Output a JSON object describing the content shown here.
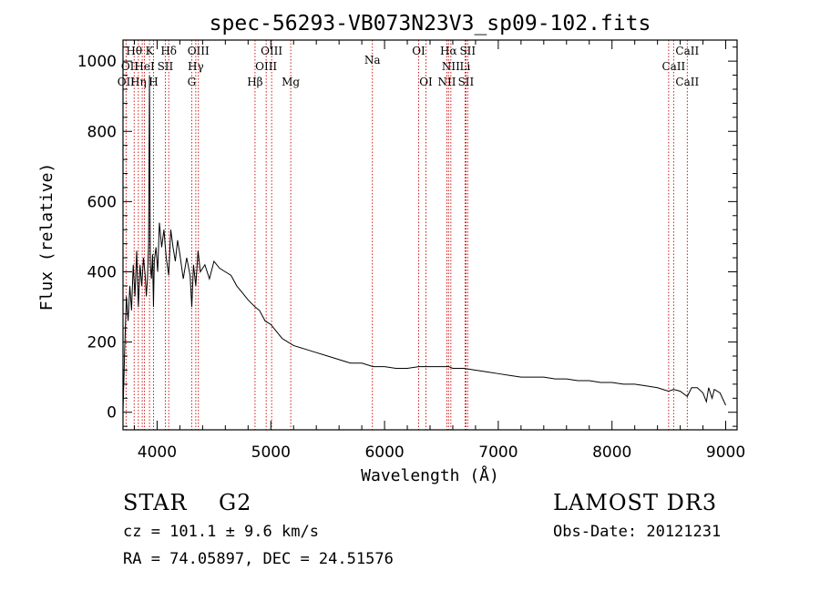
{
  "chart_data": {
    "type": "line",
    "title": "spec-56293-VB073N23V3_sp09-102.fits",
    "xlabel": "Wavelength (Å)",
    "ylabel": "Flux (relative)",
    "xlim": [
      3700,
      9100
    ],
    "ylim": [
      -50,
      1060
    ],
    "xticks": [
      4000,
      5000,
      6000,
      7000,
      8000,
      9000
    ],
    "yticks": [
      0,
      200,
      400,
      600,
      800,
      1000
    ],
    "series": [
      {
        "name": "spectrum",
        "x": [
          3700,
          3715,
          3730,
          3745,
          3760,
          3775,
          3790,
          3805,
          3820,
          3835,
          3850,
          3865,
          3880,
          3895,
          3905,
          3915,
          3925,
          3933,
          3940,
          3950,
          3960,
          3968,
          3975,
          3990,
          4005,
          4020,
          4040,
          4060,
          4080,
          4102,
          4120,
          4140,
          4160,
          4180,
          4200,
          4230,
          4260,
          4290,
          4305,
          4320,
          4340,
          4360,
          4380,
          4420,
          4460,
          4500,
          4550,
          4600,
          4650,
          4700,
          4750,
          4800,
          4861,
          4900,
          4950,
          5000,
          5050,
          5100,
          5150,
          5200,
          5300,
          5400,
          5500,
          5600,
          5700,
          5800,
          5900,
          6000,
          6100,
          6200,
          6300,
          6400,
          6500,
          6563,
          6600,
          6700,
          6800,
          6900,
          7000,
          7100,
          7200,
          7300,
          7400,
          7500,
          7600,
          7700,
          7800,
          7900,
          8000,
          8100,
          8200,
          8300,
          8400,
          8498,
          8542,
          8600,
          8662,
          8700,
          8750,
          8800,
          8830,
          8850,
          8880,
          8900,
          8950,
          9000
        ],
        "values": [
          0,
          180,
          330,
          260,
          360,
          290,
          420,
          330,
          460,
          300,
          420,
          360,
          440,
          390,
          330,
          380,
          480,
          960,
          420,
          380,
          450,
          300,
          430,
          470,
          400,
          540,
          470,
          520,
          440,
          390,
          520,
          470,
          430,
          490,
          450,
          380,
          440,
          390,
          300,
          420,
          360,
          460,
          400,
          420,
          380,
          430,
          410,
          400,
          390,
          360,
          340,
          320,
          300,
          290,
          260,
          250,
          230,
          210,
          200,
          190,
          180,
          170,
          160,
          150,
          140,
          140,
          130,
          130,
          125,
          125,
          130,
          130,
          130,
          130,
          125,
          125,
          120,
          115,
          110,
          105,
          100,
          100,
          100,
          95,
          95,
          90,
          90,
          85,
          85,
          80,
          80,
          75,
          70,
          60,
          65,
          60,
          45,
          70,
          70,
          55,
          30,
          70,
          40,
          65,
          55,
          20
        ]
      }
    ],
    "lines": [
      {
        "x": 3727,
        "label": "OII"
      },
      {
        "x": 3798,
        "label": "Hθ"
      },
      {
        "x": 3835,
        "label": "Hη"
      },
      {
        "x": 3869,
        "label": "NeIII"
      },
      {
        "x": 3889,
        "label": "HeI"
      },
      {
        "x": 3933,
        "label": "K"
      },
      {
        "x": 3968,
        "label": "H"
      },
      {
        "x": 4072,
        "label": "SII"
      },
      {
        "x": 4102,
        "label": "Hδ"
      },
      {
        "x": 4304,
        "label": "G"
      },
      {
        "x": 4340,
        "label": "Hγ"
      },
      {
        "x": 4363,
        "label": "OIII"
      },
      {
        "x": 4861,
        "label": "Hβ"
      },
      {
        "x": 4959,
        "label": "OIII"
      },
      {
        "x": 5007,
        "label": "OIII"
      },
      {
        "x": 5175,
        "label": "Mg"
      },
      {
        "x": 5893,
        "label": "Na"
      },
      {
        "x": 6300,
        "label": "OI"
      },
      {
        "x": 6364,
        "label": "OI"
      },
      {
        "x": 6548,
        "label": "NII"
      },
      {
        "x": 6563,
        "label": "Hα"
      },
      {
        "x": 6583,
        "label": "NII"
      },
      {
        "x": 6708,
        "label": "Li"
      },
      {
        "x": 6716,
        "label": "SII"
      },
      {
        "x": 6731,
        "label": "SII"
      },
      {
        "x": 8498,
        "label": "CaII"
      },
      {
        "x": 8542,
        "label": "CaII"
      },
      {
        "x": 8662,
        "label": "CaII"
      }
    ],
    "label_rows": [
      {
        "text": "Hθ",
        "x": 3798,
        "row": 1
      },
      {
        "text": "K",
        "x": 3933,
        "row": 1
      },
      {
        "text": "Hδ",
        "x": 4102,
        "row": 1
      },
      {
        "text": "OIII",
        "x": 4363,
        "row": 1
      },
      {
        "text": "OIII",
        "x": 5007,
        "row": 1
      },
      {
        "text": "OI",
        "x": 6300,
        "row": 1
      },
      {
        "text": "Hα",
        "x": 6563,
        "row": 1
      },
      {
        "text": "SII",
        "x": 6731,
        "row": 1
      },
      {
        "text": "CaII",
        "x": 8662,
        "row": 1
      },
      {
        "text": "OII",
        "x": 3760,
        "row": 2
      },
      {
        "text": "HeI",
        "x": 3889,
        "row": 2
      },
      {
        "text": "SII",
        "x": 4072,
        "row": 2
      },
      {
        "text": "Hγ",
        "x": 4340,
        "row": 2
      },
      {
        "text": "OIII",
        "x": 4959,
        "row": 2
      },
      {
        "text": "NII",
        "x": 6583,
        "row": 2
      },
      {
        "text": "Li",
        "x": 6708,
        "row": 2
      },
      {
        "text": "CaII",
        "x": 8542,
        "row": 2
      },
      {
        "text": "OII",
        "x": 3727,
        "row": 3
      },
      {
        "text": "Hη",
        "x": 3835,
        "row": 3
      },
      {
        "text": "H",
        "x": 3968,
        "row": 3
      },
      {
        "text": "G",
        "x": 4304,
        "row": 3
      },
      {
        "text": "Hβ",
        "x": 4861,
        "row": 3
      },
      {
        "text": "Mg",
        "x": 5175,
        "row": 3
      },
      {
        "text": "Na",
        "x": 5893,
        "row": 1.6
      },
      {
        "text": "OI",
        "x": 6364,
        "row": 3
      },
      {
        "text": "NII",
        "x": 6548,
        "row": 3
      },
      {
        "text": "SII",
        "x": 6716,
        "row": 3
      },
      {
        "text": "CaII",
        "x": 8662,
        "row": 3
      }
    ],
    "colors": {
      "spectrum": "#000000",
      "lines": "#cc0000",
      "axes": "#000000"
    }
  },
  "info": {
    "object_type": "STAR",
    "subclass": "G2",
    "survey": "LAMOST DR3",
    "cz": "cz = 101.1 ± 9.6 km/s",
    "obs_date": "Obs-Date: 20121231",
    "coords": "RA =  74.05897, DEC =  24.51576"
  }
}
